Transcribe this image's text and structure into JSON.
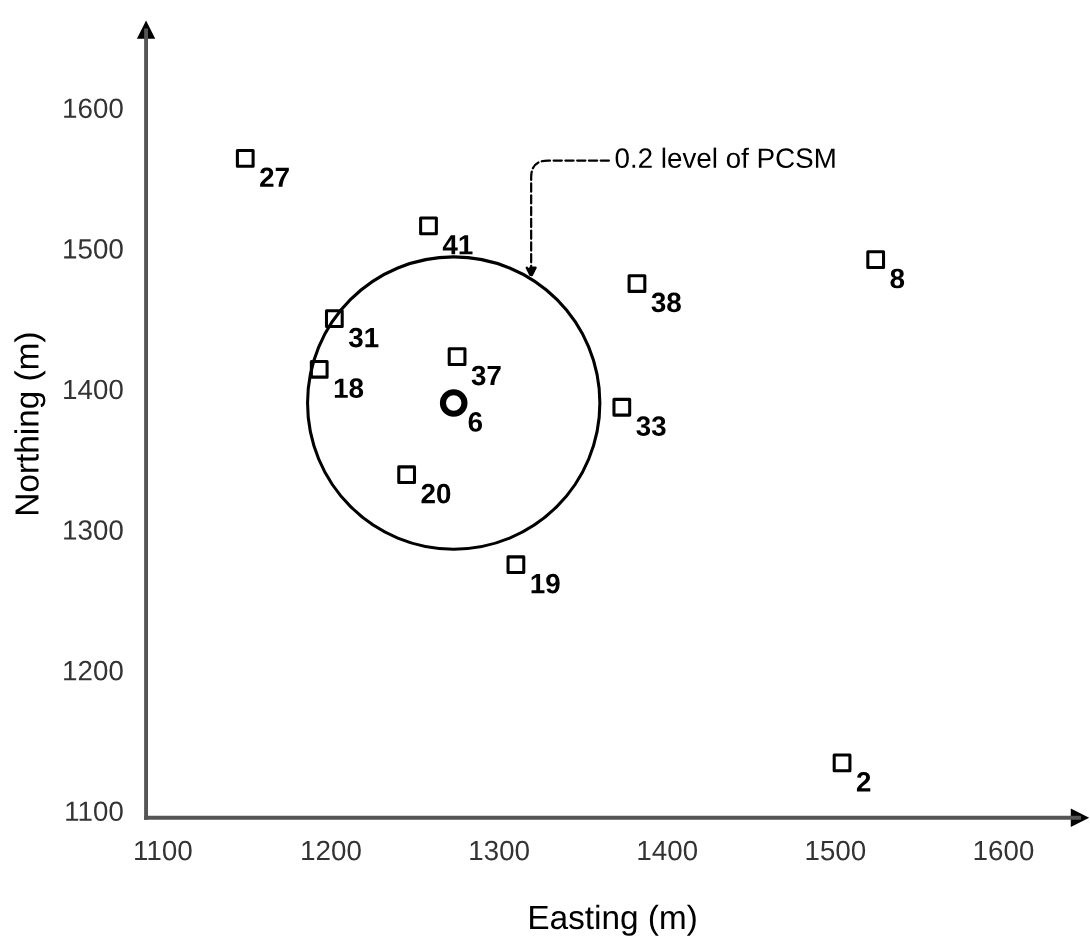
{
  "chart_data": {
    "type": "scatter",
    "xlabel": "Easting (m)",
    "ylabel": "Northing (m)",
    "xlim": [
      1090,
      1645
    ],
    "ylim": [
      1095,
      1655
    ],
    "xticks": [
      1100,
      1200,
      1300,
      1400,
      1500,
      1600
    ],
    "yticks": [
      1100,
      1200,
      1300,
      1400,
      1500,
      1600
    ],
    "grid": false,
    "legend": false,
    "series": [
      {
        "type": "scatter",
        "marker": "square",
        "color": "#000000",
        "x": [
          1149,
          1258,
          1202,
          1193,
          1275,
          1245,
          1310,
          1382,
          1524,
          1373,
          1504
        ],
        "values": [
          1564,
          1516,
          1450,
          1414,
          1423,
          1339,
          1275,
          1475,
          1492,
          1387,
          1134
        ]
      },
      {
        "type": "scatter",
        "marker": "circle",
        "color": "#000000",
        "x": [
          1273
        ],
        "values": [
          1390
        ]
      }
    ],
    "annotations": [
      {
        "text": "27",
        "x": 1149,
        "y": 1564
      },
      {
        "text": "41",
        "x": 1258,
        "y": 1516
      },
      {
        "text": "31",
        "x": 1202,
        "y": 1450
      },
      {
        "text": "18",
        "x": 1193,
        "y": 1414
      },
      {
        "text": "37",
        "x": 1275,
        "y": 1423
      },
      {
        "text": "20",
        "x": 1245,
        "y": 1339
      },
      {
        "text": "19",
        "x": 1310,
        "y": 1275
      },
      {
        "text": "38",
        "x": 1382,
        "y": 1475
      },
      {
        "text": "8",
        "x": 1524,
        "y": 1492
      },
      {
        "text": "33",
        "x": 1373,
        "y": 1387
      },
      {
        "text": "2",
        "x": 1504,
        "y": 1134
      },
      {
        "text": "6",
        "x": 1273,
        "y": 1390
      },
      "0.2 level of PCSM"
    ]
  }
}
